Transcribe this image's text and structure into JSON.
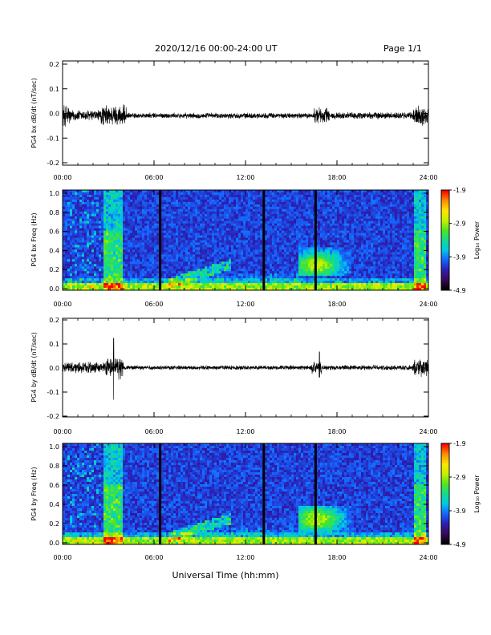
{
  "header": {
    "title": "2020/12/16  00:00-24:00 UT",
    "page": "Page 1/1"
  },
  "xaxis": {
    "label": "Universal Time (hh:mm)",
    "ticks": [
      "00:00",
      "06:00",
      "12:00",
      "18:00",
      "24:00"
    ],
    "range_hours": [
      0,
      24
    ]
  },
  "colorbar": {
    "label": "Log₁₀ Power",
    "ticks": [
      "-1.9",
      "-2.9",
      "-3.9",
      "-4.9"
    ],
    "range": [
      -4.9,
      -1.9
    ],
    "colors": [
      "#000000",
      "#3a0a5a",
      "#2b1fb3",
      "#1565ff",
      "#00c8e6",
      "#14dc8c",
      "#50e61e",
      "#c8f000",
      "#ffe600",
      "#ff8c00",
      "#ff0000"
    ]
  },
  "chart_data": [
    {
      "type": "line",
      "ylabel": "PG4 bx dB/dt (nT/sec)",
      "ylim": [
        -0.2,
        0.2
      ],
      "yticks": [
        "0.2",
        "0.1",
        "0.0",
        "-0.1",
        "-0.2"
      ],
      "baseline": -0.01,
      "activity": [
        {
          "from_h": 0.0,
          "to_h": 0.5,
          "amp": 0.05
        },
        {
          "from_h": 0.5,
          "to_h": 2.5,
          "amp": 0.025
        },
        {
          "from_h": 2.5,
          "to_h": 4.2,
          "amp": 0.045
        },
        {
          "from_h": 4.2,
          "to_h": 16.5,
          "amp": 0.012
        },
        {
          "from_h": 16.5,
          "to_h": 17.5,
          "amp": 0.035
        },
        {
          "from_h": 17.5,
          "to_h": 23.0,
          "amp": 0.015
        },
        {
          "from_h": 23.0,
          "to_h": 24.0,
          "amp": 0.045
        }
      ]
    },
    {
      "type": "heatmap",
      "ylabel": "PG4 bx Freq (Hz)",
      "ylim": [
        0.0,
        1.0
      ],
      "yticks": [
        "1.0",
        "0.8",
        "0.6",
        "0.4",
        "0.2",
        "0.0"
      ],
      "data_gaps_hours": [
        6.4,
        13.2,
        16.6
      ]
    },
    {
      "type": "line",
      "ylabel": "PG4 by dB/dt (nT/sec)",
      "ylim": [
        -0.2,
        0.2
      ],
      "yticks": [
        "0.2",
        "0.1",
        "0.0",
        "-0.1",
        "-0.2"
      ],
      "baseline": 0.0,
      "activity": [
        {
          "from_h": 0.0,
          "to_h": 2.8,
          "amp": 0.025
        },
        {
          "from_h": 2.8,
          "to_h": 4.0,
          "amp": 0.05
        },
        {
          "from_h": 4.0,
          "to_h": 16.3,
          "amp": 0.01
        },
        {
          "from_h": 16.3,
          "to_h": 17.0,
          "amp": 0.03
        },
        {
          "from_h": 17.0,
          "to_h": 23.0,
          "amp": 0.012
        },
        {
          "from_h": 23.0,
          "to_h": 24.0,
          "amp": 0.04
        }
      ],
      "spikes": [
        {
          "t_h": 3.35,
          "max": 0.12,
          "min": -0.13
        },
        {
          "t_h": 16.85,
          "max": 0.065,
          "min": -0.04
        }
      ]
    },
    {
      "type": "heatmap",
      "ylabel": "PG4 by Freq (Hz)",
      "ylim": [
        0.0,
        1.0
      ],
      "yticks": [
        "1.0",
        "0.8",
        "0.6",
        "0.4",
        "0.2",
        "0.0"
      ],
      "data_gaps_hours": [
        6.4,
        13.2,
        16.6
      ]
    }
  ]
}
